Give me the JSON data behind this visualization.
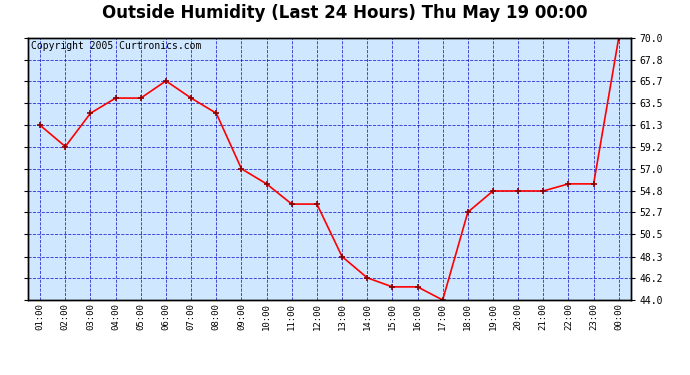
{
  "title": "Outside Humidity (Last 24 Hours) Thu May 19 00:00",
  "copyright": "Copyright 2005 Curtronics.com",
  "x_labels": [
    "01:00",
    "02:00",
    "03:00",
    "04:00",
    "05:00",
    "06:00",
    "07:00",
    "08:00",
    "09:00",
    "10:00",
    "11:00",
    "12:00",
    "13:00",
    "14:00",
    "15:00",
    "16:00",
    "17:00",
    "18:00",
    "19:00",
    "20:00",
    "21:00",
    "22:00",
    "23:00",
    "00:00"
  ],
  "x_values": [
    1,
    2,
    3,
    4,
    5,
    6,
    7,
    8,
    9,
    10,
    11,
    12,
    13,
    14,
    15,
    16,
    17,
    18,
    19,
    20,
    21,
    22,
    23,
    24
  ],
  "y_values": [
    61.3,
    59.2,
    62.5,
    64.0,
    64.0,
    65.7,
    64.0,
    62.5,
    57.0,
    55.5,
    53.5,
    53.5,
    48.3,
    46.2,
    45.3,
    45.3,
    44.0,
    52.7,
    54.8,
    54.8,
    54.8,
    55.5,
    55.5,
    70.0
  ],
  "ylim_min": 44.0,
  "ylim_max": 70.0,
  "y_ticks": [
    44.0,
    46.2,
    48.3,
    50.5,
    52.7,
    54.8,
    57.0,
    59.2,
    61.3,
    63.5,
    65.7,
    67.8,
    70.0
  ],
  "line_color": "red",
  "marker_color": "#8b0000",
  "bg_color": "#d0e8ff",
  "grid_color": "#0000cc",
  "title_fontsize": 12,
  "copyright_fontsize": 7
}
